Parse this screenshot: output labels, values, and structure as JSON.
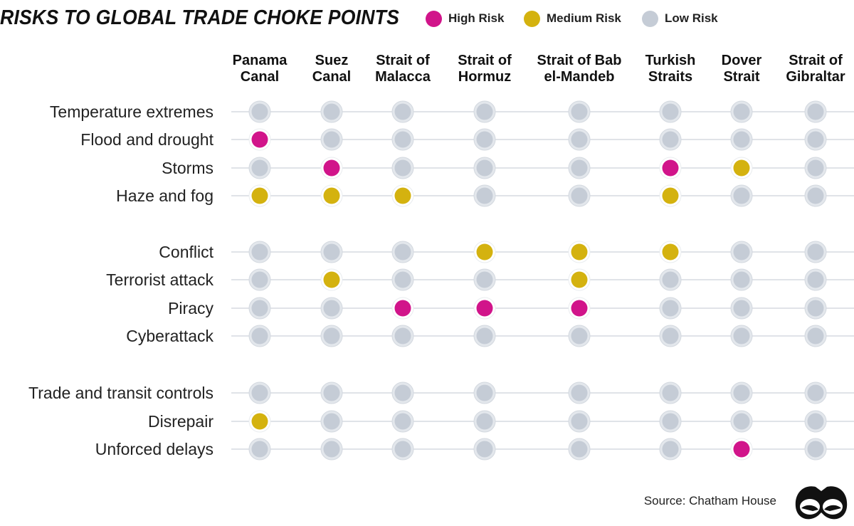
{
  "title": "RISKS TO GLOBAL TRADE CHOKE POINTS",
  "legend": [
    {
      "label": "High Risk",
      "color": "#d1148a"
    },
    {
      "label": "Medium Risk",
      "color": "#d4b20f"
    },
    {
      "label": "Low Risk",
      "color": "#c5ccd6"
    }
  ],
  "source": "Source: Chatham House",
  "chart_data": {
    "type": "table",
    "title": "RISKS TO GLOBAL TRADE CHOKE POINTS",
    "columns": [
      [
        "Panama",
        "Canal"
      ],
      [
        "Suez",
        "Canal"
      ],
      [
        "Strait of",
        "Malacca"
      ],
      [
        "Strait of",
        "Hormuz"
      ],
      [
        "Strait of Bab",
        "el-Mandeb"
      ],
      [
        "Turkish",
        "Straits"
      ],
      [
        "Dover",
        "Strait"
      ],
      [
        "Strait of",
        "Gibraltar"
      ]
    ],
    "rows": [
      {
        "label": "Temperature extremes",
        "values": [
          "low",
          "low",
          "low",
          "low",
          "low",
          "low",
          "low",
          "low"
        ]
      },
      {
        "label": "Flood and drought",
        "values": [
          "high",
          "low",
          "low",
          "low",
          "low",
          "low",
          "low",
          "low"
        ]
      },
      {
        "label": "Storms",
        "values": [
          "low",
          "high",
          "low",
          "low",
          "low",
          "high",
          "medium",
          "low"
        ]
      },
      {
        "label": "Haze and fog",
        "values": [
          "medium",
          "medium",
          "medium",
          "low",
          "low",
          "medium",
          "low",
          "low"
        ]
      },
      {
        "label": "Conflict",
        "values": [
          "low",
          "low",
          "low",
          "medium",
          "medium",
          "medium",
          "low",
          "low"
        ]
      },
      {
        "label": "Terrorist attack",
        "values": [
          "low",
          "medium",
          "low",
          "low",
          "medium",
          "low",
          "low",
          "low"
        ]
      },
      {
        "label": "Piracy",
        "values": [
          "low",
          "low",
          "high",
          "high",
          "high",
          "low",
          "low",
          "low"
        ]
      },
      {
        "label": "Cyberattack",
        "values": [
          "low",
          "low",
          "low",
          "low",
          "low",
          "low",
          "low",
          "low"
        ]
      },
      {
        "label": "Trade and transit controls",
        "values": [
          "low",
          "low",
          "low",
          "low",
          "low",
          "low",
          "low",
          "low"
        ]
      },
      {
        "label": "Disrepair",
        "values": [
          "medium",
          "low",
          "low",
          "low",
          "low",
          "low",
          "low",
          "low"
        ]
      },
      {
        "label": "Unforced delays",
        "values": [
          "low",
          "low",
          "low",
          "low",
          "low",
          "low",
          "high",
          "low"
        ]
      }
    ],
    "colors": {
      "high": "#d1148a",
      "medium": "#d4b20f",
      "low": "#c5ccd6",
      "low_ring": "#e3e7ec",
      "line": "#d5dae0"
    }
  }
}
